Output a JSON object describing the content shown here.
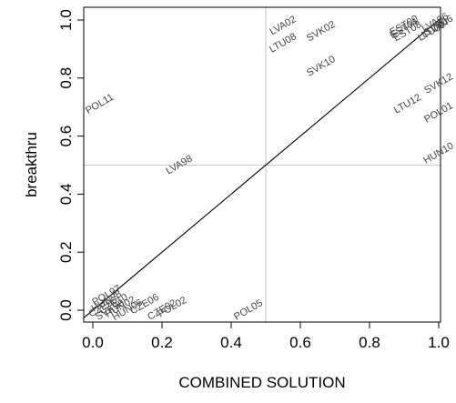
{
  "chart_data": {
    "type": "scatter",
    "xlabel": "COMBINED SOLUTION",
    "ylabel": "breakthru",
    "xlim": [
      0,
      1
    ],
    "ylim": [
      0,
      1
    ],
    "xticks": [
      {
        "value": 0.0,
        "label": "0.0"
      },
      {
        "value": 0.2,
        "label": "0.2"
      },
      {
        "value": 0.4,
        "label": "0.4"
      },
      {
        "value": 0.6,
        "label": "0.6"
      },
      {
        "value": 0.8,
        "label": "0.8"
      },
      {
        "value": 1.0,
        "label": "1.0"
      }
    ],
    "yticks": [
      {
        "value": 0.0,
        "label": "0.0"
      },
      {
        "value": 0.2,
        "label": "0.2"
      },
      {
        "value": 0.4,
        "label": "0.4"
      },
      {
        "value": 0.6,
        "label": "0.6"
      },
      {
        "value": 0.8,
        "label": "0.8"
      },
      {
        "value": 1.0,
        "label": "1.0"
      }
    ],
    "reference_lines": {
      "diagonal": true,
      "x": 0.5,
      "y": 0.5
    },
    "colors": {
      "labels": "#444444",
      "diagonal": "#000000",
      "reference": "#cccccc",
      "frame": "#000000"
    },
    "points": [
      {
        "label": "POL11",
        "x": 0.02,
        "y": 0.71
      },
      {
        "label": "LVA98",
        "x": 0.25,
        "y": 0.5
      },
      {
        "label": "LVA02",
        "x": 0.55,
        "y": 0.98
      },
      {
        "label": "LTU08",
        "x": 0.55,
        "y": 0.92
      },
      {
        "label": "SVK02",
        "x": 0.66,
        "y": 0.96
      },
      {
        "label": "SVK10",
        "x": 0.66,
        "y": 0.84
      },
      {
        "label": "EST00",
        "x": 0.9,
        "y": 0.98
      },
      {
        "label": "EST04",
        "x": 0.9,
        "y": 0.97
      },
      {
        "label": "EST08",
        "x": 0.91,
        "y": 0.96
      },
      {
        "label": "LTU00",
        "x": 0.98,
        "y": 0.96
      },
      {
        "label": "LTU04",
        "x": 0.99,
        "y": 0.97
      },
      {
        "label": "LVA06",
        "x": 0.99,
        "y": 0.99
      },
      {
        "label": "SVK06",
        "x": 1.0,
        "y": 0.98
      },
      {
        "label": "SVK12",
        "x": 1.0,
        "y": 0.78
      },
      {
        "label": "LTU12",
        "x": 0.91,
        "y": 0.71
      },
      {
        "label": "POL01",
        "x": 1.0,
        "y": 0.68
      },
      {
        "label": "HUN10",
        "x": 1.0,
        "y": 0.54
      },
      {
        "label": "POL05",
        "x": 0.45,
        "y": 0.0
      },
      {
        "label": "CZE06",
        "x": 0.15,
        "y": 0.02
      },
      {
        "label": "CZE02",
        "x": 0.2,
        "y": 0.0
      },
      {
        "label": "POL02",
        "x": 0.23,
        "y": 0.01
      },
      {
        "label": "HUN06",
        "x": 0.1,
        "y": 0.0
      },
      {
        "label": "HUN02",
        "x": 0.08,
        "y": 0.01
      },
      {
        "label": "CZE10",
        "x": 0.06,
        "y": 0.02
      },
      {
        "label": "CZE96",
        "x": 0.03,
        "y": 0.01
      },
      {
        "label": "SVK98",
        "x": 0.05,
        "y": 0.0
      },
      {
        "label": "HUN98",
        "x": 0.04,
        "y": 0.03
      },
      {
        "label": "POL97",
        "x": 0.04,
        "y": 0.05
      }
    ]
  }
}
